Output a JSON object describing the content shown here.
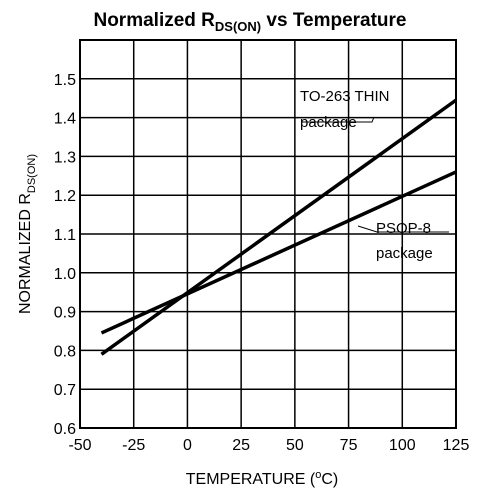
{
  "chart_data": {
    "type": "line",
    "title": {
      "main": "Normalized R",
      "sub": "DS(ON)",
      "rest": " vs Temperature"
    },
    "xlabel": {
      "main": "TEMPERATURE (",
      "sup": "o",
      "rest": "C)"
    },
    "ylabel": {
      "main": "NORMALIZED R",
      "sub": "DS(ON)"
    },
    "xlim": [
      -50,
      125
    ],
    "ylim": [
      0.6,
      1.6
    ],
    "xticks": [
      -50,
      -25,
      0,
      25,
      50,
      75,
      100,
      125
    ],
    "xtick_labels": [
      "-50",
      "-25",
      "0",
      "25",
      "50",
      "75",
      "100",
      "125"
    ],
    "yticks": [
      0.6,
      0.7,
      0.8,
      0.9,
      1.0,
      1.1,
      1.2,
      1.3,
      1.4,
      1.5
    ],
    "ytick_labels": [
      "0.6",
      "0.7",
      "0.8",
      "0.9",
      "1.0",
      "1.1",
      "1.2",
      "1.3",
      "1.4",
      "1.5"
    ],
    "grid": true,
    "series": [
      {
        "name": "TO-263 THIN package",
        "x": [
          -40,
          125
        ],
        "y": [
          0.79,
          1.445
        ]
      },
      {
        "name": "PSOP-8 package",
        "x": [
          -40,
          125
        ],
        "y": [
          0.845,
          1.26
        ]
      }
    ],
    "annotations": [
      {
        "id": "to263",
        "lines": [
          "TO-263 THIN",
          "package"
        ],
        "series": 0
      },
      {
        "id": "psop8",
        "lines": [
          "PSOP-8",
          "package"
        ],
        "series": 1
      }
    ]
  }
}
